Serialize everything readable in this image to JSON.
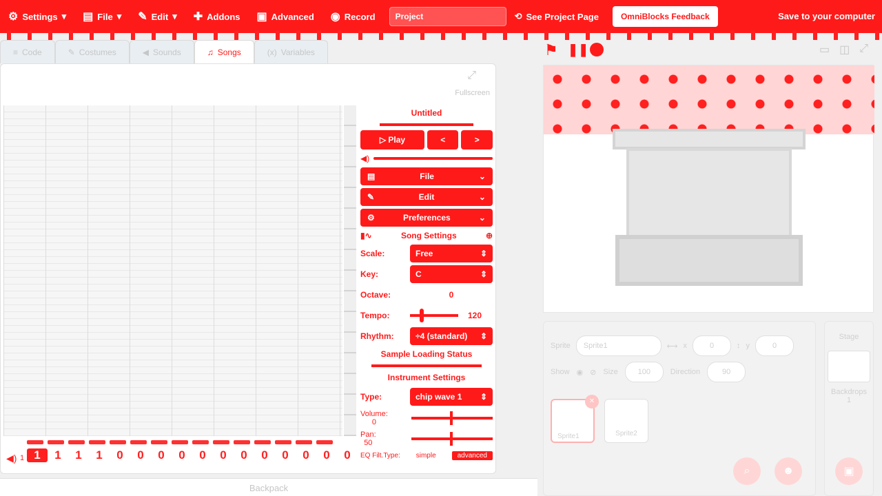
{
  "menubar": {
    "settings": "Settings",
    "file": "File",
    "edit": "Edit",
    "addons": "Addons",
    "advanced": "Advanced",
    "record": "Record",
    "project_title": "Project",
    "see_project_page": "See Project Page",
    "feedback": "OmniBlocks Feedback",
    "save": "Save to your computer"
  },
  "tabs": [
    {
      "label": "Code"
    },
    {
      "label": "Costumes"
    },
    {
      "label": "Sounds"
    },
    {
      "label": "Songs"
    },
    {
      "label": "Variables"
    }
  ],
  "editor": {
    "fullscreen_label": "Fullscreen",
    "sequence_values": [
      "1",
      "1",
      "1",
      "1",
      "0",
      "0",
      "0",
      "0",
      "0",
      "0",
      "0",
      "0",
      "0",
      "0",
      "0",
      "0"
    ],
    "track_number": "1"
  },
  "panel": {
    "title": "Untitled",
    "play": "Play",
    "prev": "<",
    "next": ">",
    "file_dd": "File",
    "edit_dd": "Edit",
    "prefs_dd": "Preferences",
    "song_settings": "Song Settings",
    "scale_label": "Scale:",
    "scale_value": "Free",
    "key_label": "Key:",
    "key_value": "C",
    "octave_label": "Octave:",
    "octave_value": "0",
    "tempo_label": "Tempo:",
    "tempo_value": "120",
    "rhythm_label": "Rhythm:",
    "rhythm_value": "÷4 (standard)",
    "sample_status": "Sample Loading Status",
    "instrument_settings": "Instrument Settings",
    "type_label": "Type:",
    "type_value": "chip wave 1",
    "volume_label": "Volume:",
    "volume_value": "0",
    "pan_label": "Pan:",
    "pan_value": "50",
    "eq_label": "EQ Filt.Type:",
    "eq_simple": "simple",
    "eq_advanced": "advanced"
  },
  "backpack": "Backpack",
  "sprite_info": {
    "sprite_label": "Sprite",
    "sprite_name": "Sprite1",
    "x_label": "x",
    "x_value": "0",
    "y_label": "y",
    "y_value": "0",
    "show_label": "Show",
    "size_label": "Size",
    "size_value": "100",
    "direction_label": "Direction",
    "direction_value": "90"
  },
  "sprites": [
    {
      "name": "Sprite1"
    },
    {
      "name": "Sprite2"
    }
  ],
  "stage_panel": {
    "title": "Stage",
    "backdrops_label": "Backdrops",
    "backdrops_count": "1"
  }
}
